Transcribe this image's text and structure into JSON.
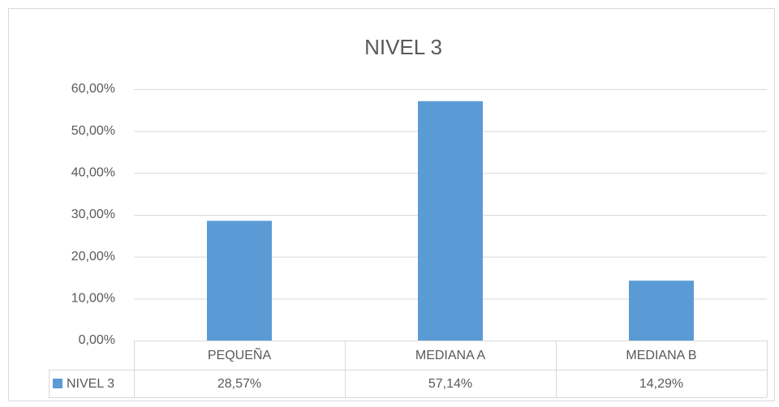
{
  "chart_data": {
    "type": "bar",
    "title": "NIVEL 3",
    "categories": [
      "PEQUEÑA",
      "MEDIANA A",
      "MEDIANA B"
    ],
    "series": [
      {
        "name": "NIVEL 3",
        "color": "#5b9bd5",
        "values": [
          28.57,
          57.14,
          14.29
        ],
        "value_labels": [
          "28,57%",
          "57,14%",
          "14,29%"
        ]
      }
    ],
    "ylim": [
      0,
      60
    ],
    "yticks": [
      {
        "value": 0,
        "label": "0,00%"
      },
      {
        "value": 10,
        "label": "10,00%"
      },
      {
        "value": 20,
        "label": "20,00%"
      },
      {
        "value": 30,
        "label": "30,00%"
      },
      {
        "value": 40,
        "label": "40,00%"
      },
      {
        "value": 50,
        "label": "50,00%"
      },
      {
        "value": 60,
        "label": "60,00%"
      }
    ],
    "grid": true,
    "data_table": true
  }
}
